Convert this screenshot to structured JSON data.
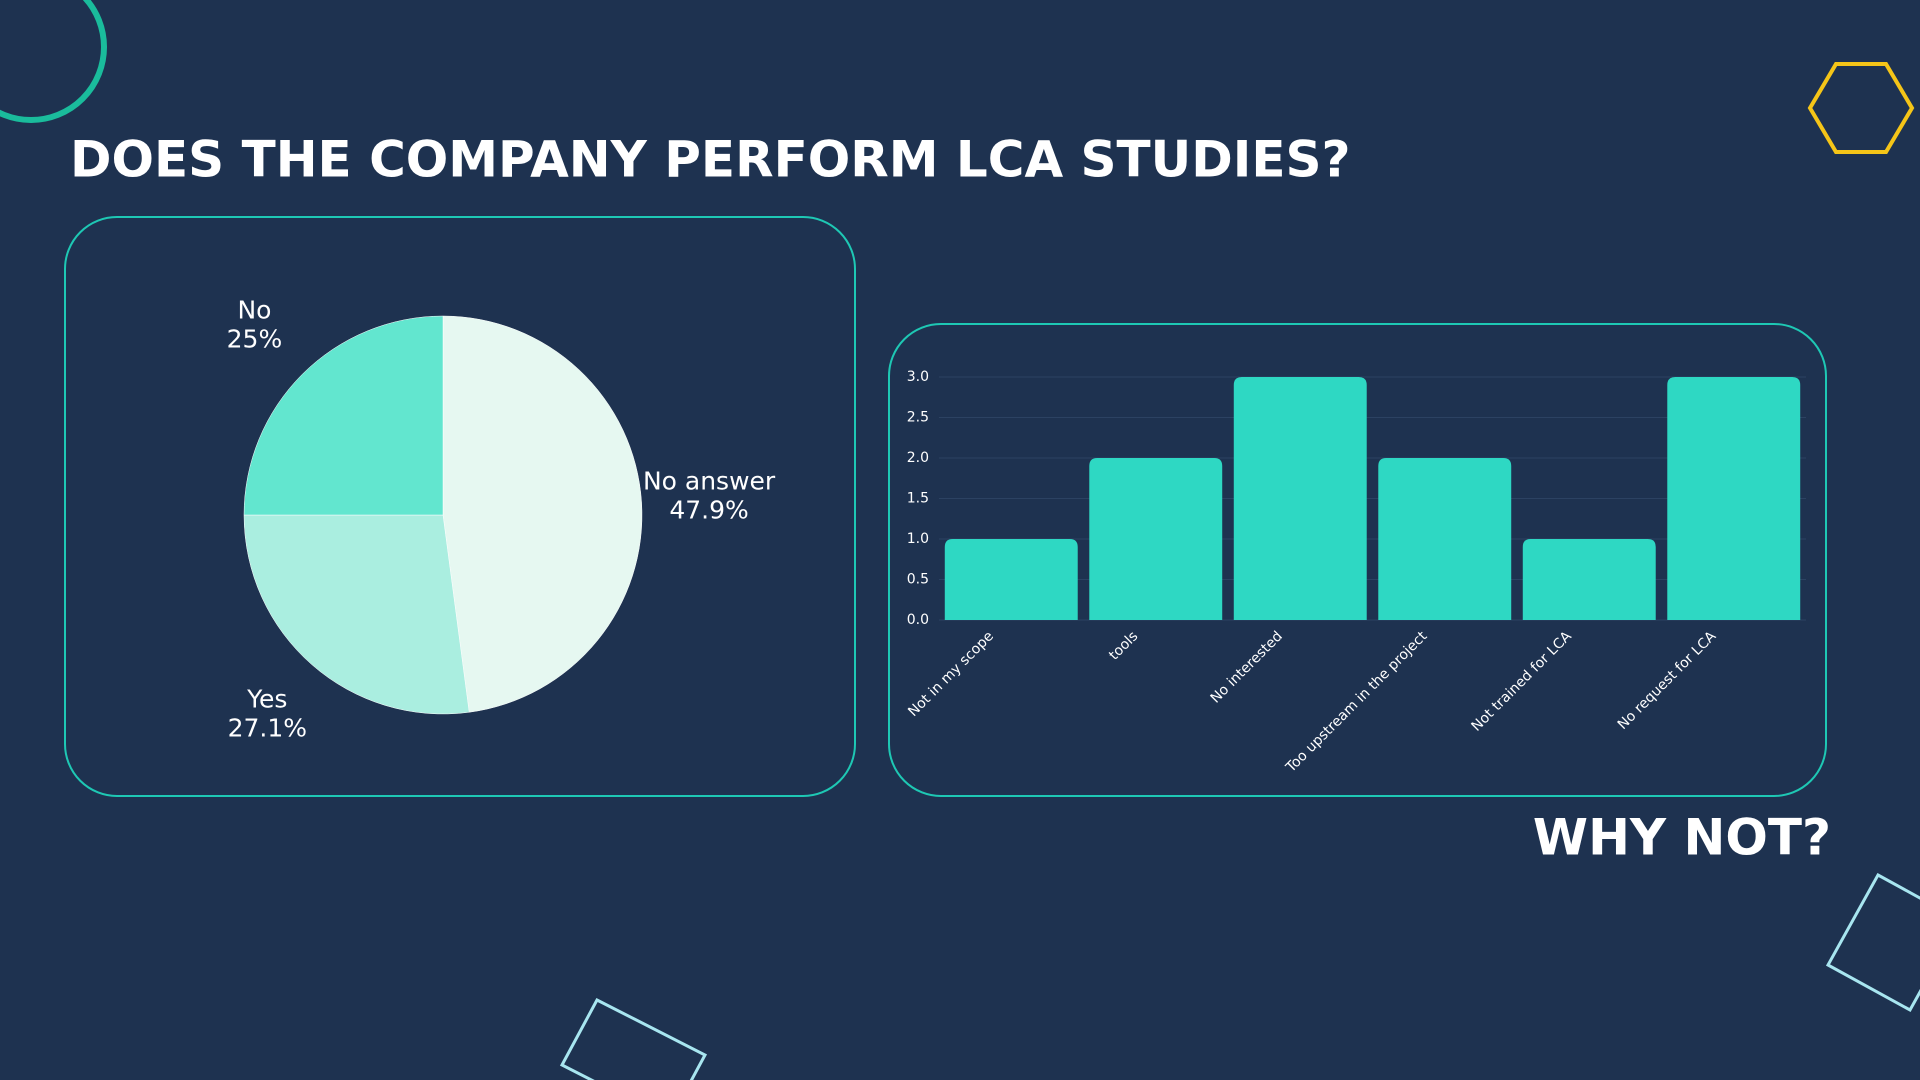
{
  "chart_data": [
    {
      "type": "pie",
      "title": "DOES THE COMPANY PERFORM LCA STUDIES?",
      "categories": [
        "No answer",
        "Yes",
        "No"
      ],
      "values": [
        47.9,
        27.1,
        25
      ],
      "value_labels": [
        "47.9%",
        "27.1%",
        "25%"
      ],
      "colors": [
        "#e6f8f1",
        "#aaeee0",
        "#62e6cf"
      ]
    },
    {
      "type": "bar",
      "title": "WHY NOT?",
      "categories": [
        "Not in my scope",
        "tools",
        "No interested",
        "Too upstream in the project",
        "Not trained for LCA",
        "No request for LCA"
      ],
      "values": [
        1,
        2,
        3,
        2,
        1,
        3
      ],
      "color": "#2ed8c3",
      "ylim": [
        0,
        3
      ],
      "yticks": [
        {
          "value": 0,
          "label": "0.0"
        },
        {
          "value": 0.5,
          "label": "0.5"
        },
        {
          "value": 1,
          "label": "1.0"
        },
        {
          "value": 1.5,
          "label": "1.5"
        },
        {
          "value": 2,
          "label": "2.0"
        },
        {
          "value": 2.5,
          "label": "2.5"
        },
        {
          "value": 3,
          "label": "3.0"
        }
      ],
      "grid": true
    }
  ]
}
